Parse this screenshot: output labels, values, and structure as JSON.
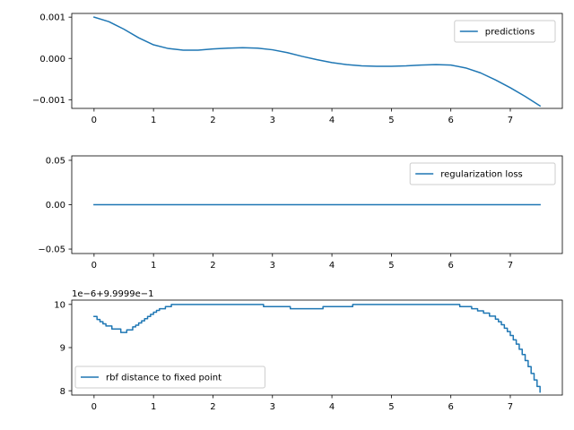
{
  "chart_data": [
    {
      "type": "line",
      "title": "",
      "xlabel": "",
      "ylabel": "",
      "xlim": [
        -0.375,
        7.875
      ],
      "ylim": [
        -0.00121,
        0.00109
      ],
      "xticks": [
        0,
        1,
        2,
        3,
        4,
        5,
        6,
        7
      ],
      "yticks": [
        -0.001,
        0.0,
        0.001
      ],
      "ytick_labels": [
        "−0.001",
        "0.000",
        "0.001"
      ],
      "legend": {
        "placement": "upper right"
      },
      "grid": false,
      "series": [
        {
          "name": "predictions",
          "color": "#1f77b4",
          "x": [
            0,
            0.25,
            0.5,
            0.75,
            1.0,
            1.25,
            1.5,
            1.75,
            2.0,
            2.25,
            2.5,
            2.75,
            3.0,
            3.25,
            3.5,
            3.75,
            4.0,
            4.25,
            4.5,
            4.75,
            5.0,
            5.25,
            5.5,
            5.75,
            6.0,
            6.25,
            6.5,
            6.75,
            7.0,
            7.25,
            7.5
          ],
          "y": [
            0.001,
            0.00089,
            0.00071,
            0.0005,
            0.00033,
            0.00024,
            0.0002,
            0.0002,
            0.00023,
            0.00025,
            0.00026,
            0.00025,
            0.00021,
            0.00014,
            5e-05,
            -3e-05,
            -0.0001,
            -0.00015,
            -0.00018,
            -0.00019,
            -0.00019,
            -0.00018,
            -0.00016,
            -0.00015,
            -0.00016,
            -0.00023,
            -0.00035,
            -0.00052,
            -0.00071,
            -0.00092,
            -0.00115
          ]
        }
      ]
    },
    {
      "type": "line",
      "title": "",
      "xlabel": "",
      "ylabel": "",
      "xlim": [
        -0.375,
        7.875
      ],
      "ylim": [
        -0.055,
        0.055
      ],
      "xticks": [
        0,
        1,
        2,
        3,
        4,
        5,
        6,
        7
      ],
      "yticks": [
        -0.05,
        0.0,
        0.05
      ],
      "ytick_labels": [
        "−0.05",
        "0.00",
        "0.05"
      ],
      "legend": {
        "placement": "upper right"
      },
      "grid": false,
      "series": [
        {
          "name": "regularization loss",
          "color": "#1f77b4",
          "x": [
            0,
            7.5
          ],
          "y": [
            0.0,
            0.0
          ]
        }
      ]
    },
    {
      "type": "line",
      "title": "",
      "xlabel": "",
      "ylabel": "",
      "offset_label": "1e−6+9.9999e−1",
      "xlim": [
        -0.375,
        7.875
      ],
      "ylim": [
        7.9,
        10.1
      ],
      "xticks": [
        0,
        1,
        2,
        3,
        4,
        5,
        6,
        7
      ],
      "yticks": [
        8,
        9,
        10
      ],
      "ytick_labels": [
        "8",
        "9",
        "10"
      ],
      "legend": {
        "placement": "lower left"
      },
      "grid": false,
      "series": [
        {
          "name": "rbf distance to fixed point",
          "color": "#1f77b4",
          "step": true,
          "x": [
            0,
            0.05,
            0.1,
            0.15,
            0.2,
            0.3,
            0.45,
            0.55,
            0.65,
            0.7,
            0.75,
            0.8,
            0.85,
            0.9,
            0.95,
            1.0,
            1.05,
            1.1,
            1.2,
            1.3,
            2.85,
            3.3,
            3.85,
            4.35,
            6.15,
            6.35,
            6.45,
            6.55,
            6.65,
            6.75,
            6.8,
            6.85,
            6.9,
            6.95,
            7.0,
            7.05,
            7.1,
            7.15,
            7.2,
            7.25,
            7.3,
            7.35,
            7.4,
            7.45,
            7.5
          ],
          "y": [
            9.72,
            9.65,
            9.6,
            9.55,
            9.5,
            9.43,
            9.35,
            9.41,
            9.48,
            9.52,
            9.57,
            9.62,
            9.67,
            9.72,
            9.77,
            9.82,
            9.86,
            9.9,
            9.95,
            10.0,
            9.95,
            9.9,
            9.95,
            10.0,
            9.95,
            9.9,
            9.85,
            9.8,
            9.73,
            9.66,
            9.6,
            9.53,
            9.45,
            9.37,
            9.28,
            9.18,
            9.08,
            8.96,
            8.84,
            8.7,
            8.56,
            8.4,
            8.25,
            8.1,
            7.97
          ]
        }
      ]
    }
  ]
}
